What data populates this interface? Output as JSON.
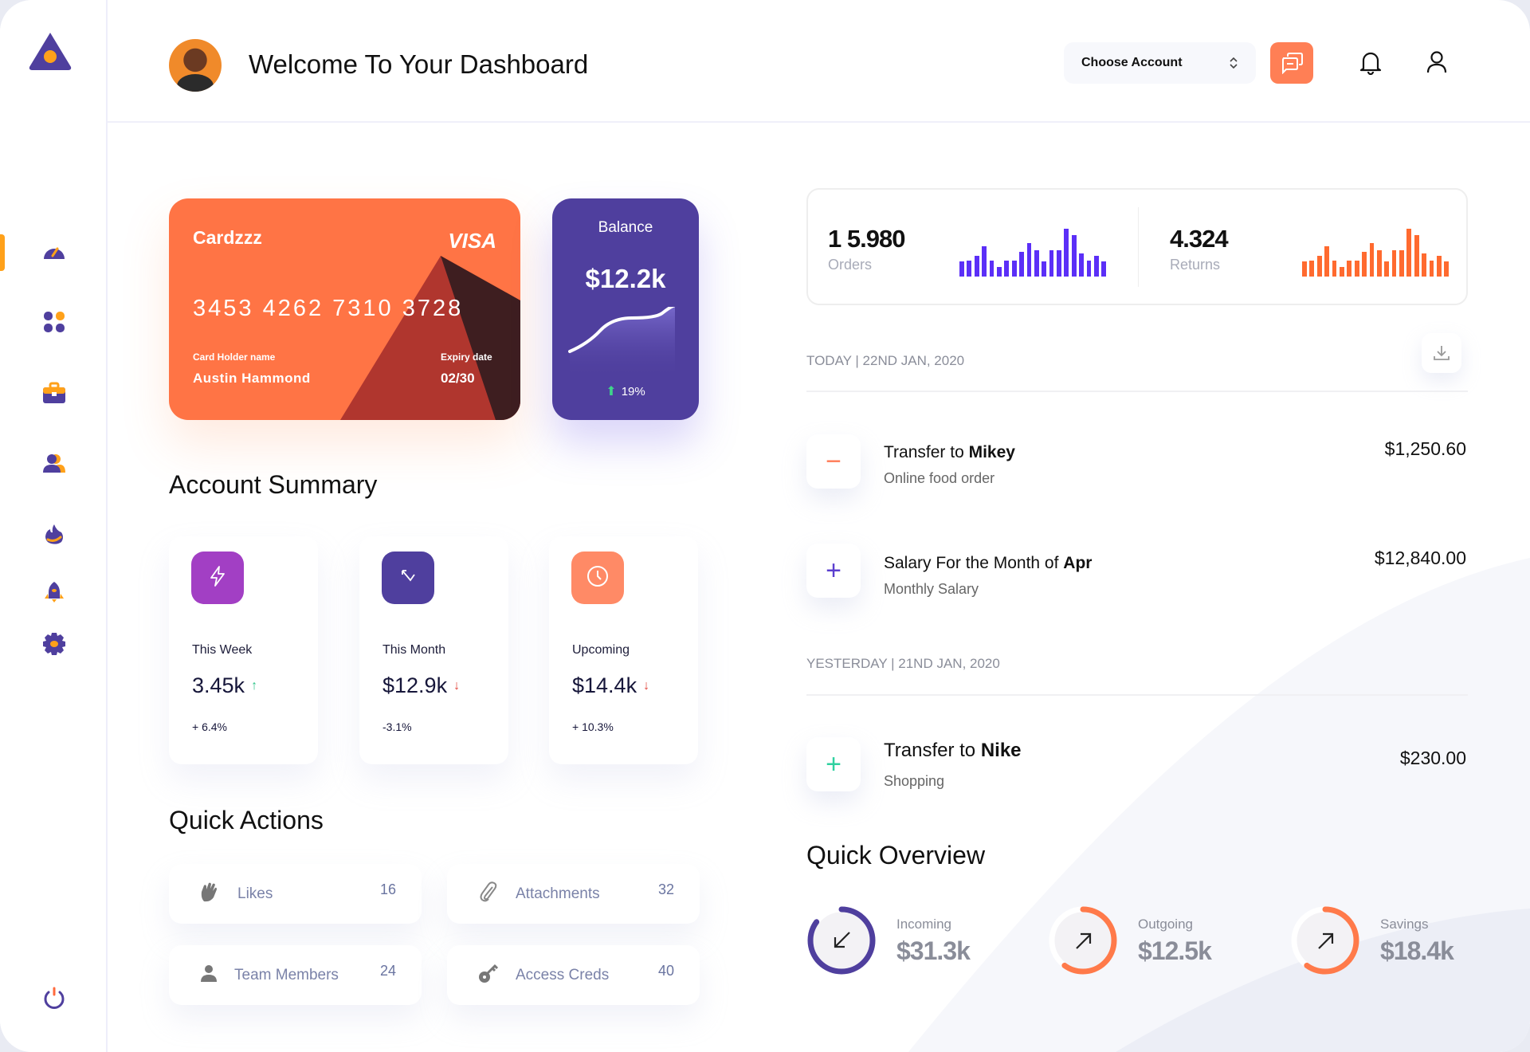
{
  "header": {
    "title": "Welcome To Your Dashboard",
    "account_select": "Choose Account"
  },
  "sidebar": {
    "items": [
      {
        "icon": "dashboard-gauge-icon",
        "active": true
      },
      {
        "icon": "apps-grid-icon"
      },
      {
        "icon": "briefcase-icon"
      },
      {
        "icon": "users-icon"
      },
      {
        "icon": "fire-icon"
      },
      {
        "icon": "rocket-icon"
      },
      {
        "icon": "settings-gear-icon"
      }
    ],
    "logout_icon": "power-icon"
  },
  "card": {
    "name": "Cardzzz",
    "brand": "VISA",
    "number": "3453 4262 7310 3728",
    "holder_label": "Card Holder name",
    "holder": "Austin Hammond",
    "expiry_label": "Expiry date",
    "expiry": "02/30"
  },
  "balance": {
    "label": "Balance",
    "value": "$12.2k",
    "change": "19%"
  },
  "account_summary": {
    "title": "Account Summary",
    "cards": [
      {
        "label": "This Week",
        "value": "3.45k",
        "trend": "up",
        "pct": "+ 6.4%",
        "color": "#a23fc4",
        "icon": "lightning-icon"
      },
      {
        "label": "This Month",
        "value": "$12.9k",
        "trend": "down",
        "pct": "-3.1%",
        "color": "#4f3f9e",
        "icon": "arrow-up-left-down-icon"
      },
      {
        "label": "Upcoming",
        "value": "$14.4k",
        "trend": "down",
        "pct": "+ 10.3%",
        "color": "#ff8a66",
        "icon": "clock-icon"
      }
    ]
  },
  "quick_actions": {
    "title": "Quick Actions",
    "items": [
      {
        "label": "Likes",
        "count": "16",
        "icon": "clap-hands-icon"
      },
      {
        "label": "Attachments",
        "count": "32",
        "icon": "paperclip-icon"
      },
      {
        "label": "Team Members",
        "count": "24",
        "icon": "person-icon"
      },
      {
        "label": "Access Creds",
        "count": "40",
        "icon": "key-icon"
      }
    ]
  },
  "stats": {
    "orders": {
      "value": "1 5.980",
      "label": "Orders",
      "color": "#5b2ff7",
      "bars": [
        55,
        60,
        76,
        112,
        60,
        36,
        60,
        60,
        92,
        122,
        96,
        55,
        96,
        96,
        176,
        152,
        85,
        60,
        76,
        55
      ]
    },
    "returns": {
      "value": "4.324",
      "label": "Returns",
      "color": "#ff6a2f",
      "bars": [
        55,
        60,
        76,
        112,
        60,
        36,
        60,
        60,
        92,
        122,
        96,
        55,
        96,
        96,
        176,
        152,
        85,
        60,
        76,
        55
      ]
    }
  },
  "transactions": {
    "today_label": "TODAY | 22ND JAN, 2020",
    "yesterday_label": "YESTERDAY | 21ND JAN, 2020",
    "items": [
      {
        "prefix": "Transfer to ",
        "bold": "Mikey",
        "sub": "Online food order",
        "amount": "$1,250.60",
        "sign": "−",
        "color": "#ff7a55"
      },
      {
        "prefix": "Salary For the Month of ",
        "bold": "Apr",
        "sub": "Monthly Salary",
        "amount": "$12,840.00",
        "sign": "+",
        "color": "#5b3fcf"
      },
      {
        "prefix": "Transfer to ",
        "bold": "Nike",
        "sub": "Shopping",
        "amount": "$230.00",
        "sign": "+",
        "color": "#2fd1a0"
      }
    ]
  },
  "quick_overview": {
    "title": "Quick Overview",
    "items": [
      {
        "label": "Incoming",
        "value": "$31.3k",
        "progress": 0.85,
        "color": "#4f3f9e",
        "arrow": "arrow-down-left-icon"
      },
      {
        "label": "Outgoing",
        "value": "$12.5k",
        "progress": 0.6,
        "color": "#ff7a4a",
        "arrow": "arrow-up-right-icon"
      },
      {
        "label": "Savings",
        "value": "$18.4k",
        "progress": 0.6,
        "color": "#ff7a4a",
        "arrow": "arrow-up-right-icon"
      }
    ]
  }
}
